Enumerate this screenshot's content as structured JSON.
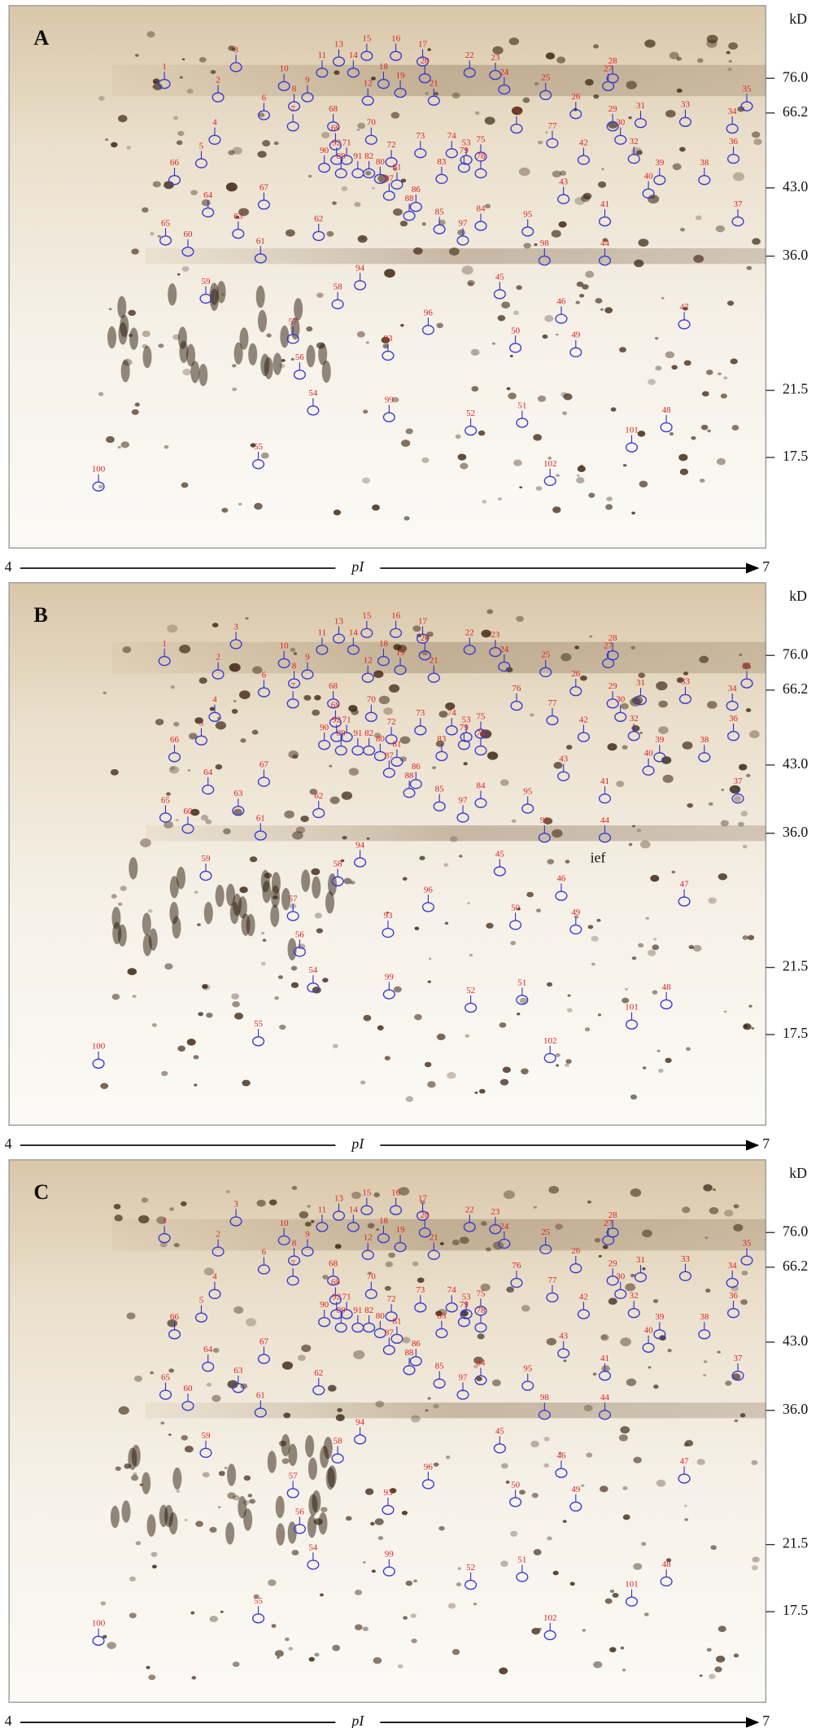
{
  "spot_labels": [
    "1",
    "2",
    "3",
    "4",
    "5",
    "6",
    "7",
    "8",
    "9",
    "10",
    "11",
    "12",
    "13",
    "14",
    "15",
    "16",
    "17",
    "18",
    "19",
    "20",
    "21",
    "22",
    "23",
    "24",
    "25",
    "26",
    "27",
    "28",
    "29",
    "30",
    "31",
    "32",
    "33",
    "34",
    "35",
    "36",
    "37",
    "38",
    "39",
    "40",
    "41",
    "42",
    "43",
    "44",
    "45",
    "46",
    "47",
    "48",
    "49",
    "50",
    "51",
    "52",
    "53",
    "54",
    "55",
    "56",
    "57",
    "58",
    "59",
    "60",
    "61",
    "62",
    "63",
    "64",
    "65",
    "66",
    "67",
    "68",
    "69",
    "70",
    "71",
    "72",
    "73",
    "74",
    "75",
    "76",
    "77",
    "78",
    "79",
    "80",
    "81",
    "82",
    "83",
    "84",
    "85",
    "86",
    "87",
    "88",
    "89",
    "90",
    "91",
    "92",
    "93",
    "94",
    "95",
    "96",
    "97",
    "98",
    "99",
    "100",
    "101",
    "102"
  ],
  "panels": [
    {
      "label": "A",
      "y_axis_title": "kD",
      "mw_markers": [
        "76.0",
        "66.2",
        "43.0",
        "36.0",
        "21.5",
        "17.5"
      ],
      "x_axis": {
        "start": "4",
        "label": "pI",
        "end": "7"
      }
    },
    {
      "label": "B",
      "y_axis_title": "kD",
      "mw_markers": [
        "76.0",
        "66.2",
        "43.0",
        "36.0",
        "21.5",
        "17.5"
      ],
      "x_axis": {
        "start": "4",
        "label": "pI",
        "end": "7"
      },
      "annotation": "ief"
    },
    {
      "label": "C",
      "y_axis_title": "kD",
      "mw_markers": [
        "76.0",
        "66.2",
        "43.0",
        "36.0",
        "21.5",
        "17.5"
      ],
      "x_axis": {
        "start": "4",
        "label": "pI",
        "end": "7"
      }
    }
  ]
}
